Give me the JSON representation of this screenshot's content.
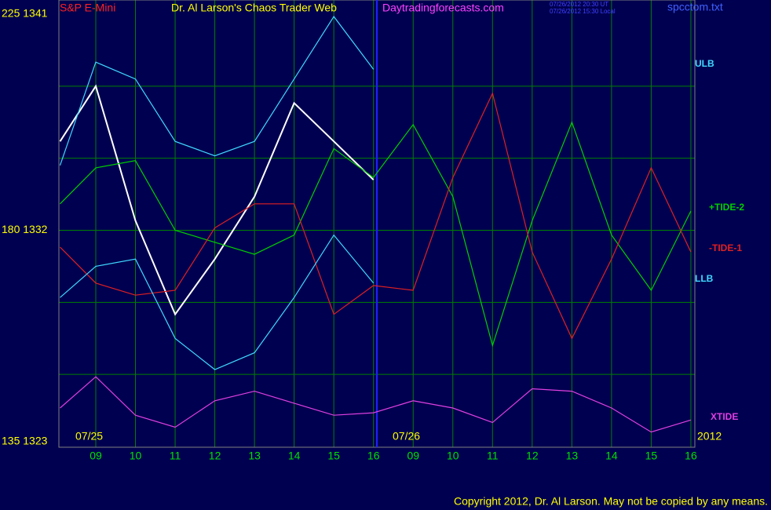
{
  "chart_data": {
    "type": "line",
    "title": "Dr. Al Larson's Chaos Trader Web",
    "site": "Daytradingforecasts.com",
    "timestamps": [
      "07/26/2012 20:30 UT",
      "07/26/2012 15:30 Local"
    ],
    "file": "spcctom.txt",
    "copyright": "Copyright 2012, Dr. Al Larson. May not be copied by any means.",
    "date_labels": [
      "07/25",
      "07/26",
      "2012"
    ],
    "x": [
      -0.9,
      0,
      1,
      2,
      3,
      4,
      5,
      6,
      7,
      8,
      9,
      10,
      11,
      12,
      13,
      14,
      15
    ],
    "xlim": [
      -0.93,
      15.1
    ],
    "xticks": [
      {
        "value": 0,
        "label": "09"
      },
      {
        "value": 1,
        "label": "10"
      },
      {
        "value": 2,
        "label": "11"
      },
      {
        "value": 3,
        "label": "12"
      },
      {
        "value": 4,
        "label": "13"
      },
      {
        "value": 5,
        "label": "14"
      },
      {
        "value": 6,
        "label": "15"
      },
      {
        "value": 7,
        "label": "16"
      },
      {
        "value": 8,
        "label": "09"
      },
      {
        "value": 9,
        "label": "10"
      },
      {
        "value": 10,
        "label": "11"
      },
      {
        "value": 11,
        "label": "12"
      },
      {
        "value": 12,
        "label": "13"
      },
      {
        "value": 13,
        "label": "14"
      },
      {
        "value": 14,
        "label": "15"
      },
      {
        "value": 15,
        "label": "16"
      }
    ],
    "ylim": [
      1323,
      1341
    ],
    "yticks": [
      {
        "value": 1341,
        "label": "225  1341"
      },
      {
        "value": 1332,
        "label": "180  1332"
      },
      {
        "value": 1323,
        "label": "135  1323"
      }
    ],
    "grid_y": [
      1326,
      1329,
      1332,
      1335,
      1338
    ],
    "grid": true,
    "series": [
      {
        "name": "S&P E-Mini",
        "color": "#ffffff",
        "values": [
          1335.7,
          1338.0,
          1332.4,
          1328.5,
          1330.8,
          1333.4,
          1337.3,
          1335.7,
          1334.1,
          null,
          null,
          null,
          null,
          null,
          null,
          null,
          null
        ]
      },
      {
        "name": "ULB",
        "color": "#40d8ff",
        "values": [
          1334.7,
          1339.0,
          1338.3,
          1335.7,
          1335.1,
          1335.7,
          1338.3,
          1340.9,
          1338.7,
          null,
          null,
          null,
          null,
          null,
          null,
          null,
          null
        ]
      },
      {
        "name": "+TIDE-2",
        "color": "#00d000",
        "values": [
          1333.1,
          1334.6,
          1334.9,
          1332.0,
          1331.5,
          1331.0,
          1331.8,
          1335.4,
          1334.2,
          1336.4,
          1333.4,
          1327.2,
          1332.4,
          1336.5,
          1331.8,
          1329.5,
          1332.8
        ]
      },
      {
        "name": "-TIDE-1",
        "color": "#e02020",
        "values": [
          1331.3,
          1329.8,
          1329.3,
          1329.5,
          1332.1,
          1333.1,
          1333.1,
          1328.5,
          1329.7,
          1329.5,
          1334.2,
          1337.7,
          1331.1,
          1327.5,
          1330.8,
          1334.6,
          1331.1
        ]
      },
      {
        "name": "LLB",
        "color": "#40d8ff",
        "values": [
          1329.2,
          1330.5,
          1330.8,
          1327.5,
          1326.2,
          1326.9,
          1329.2,
          1331.8,
          1329.8,
          null,
          null,
          null,
          null,
          null,
          null,
          null,
          null
        ]
      },
      {
        "name": "XTIDE",
        "color": "#e040e0",
        "values": [
          1324.6,
          1325.9,
          1324.3,
          1323.8,
          1324.9,
          1325.3,
          1324.8,
          1324.3,
          1324.4,
          1324.9,
          1324.6,
          1324.0,
          1325.4,
          1325.3,
          1324.6,
          1323.6,
          1324.1
        ]
      }
    ]
  }
}
